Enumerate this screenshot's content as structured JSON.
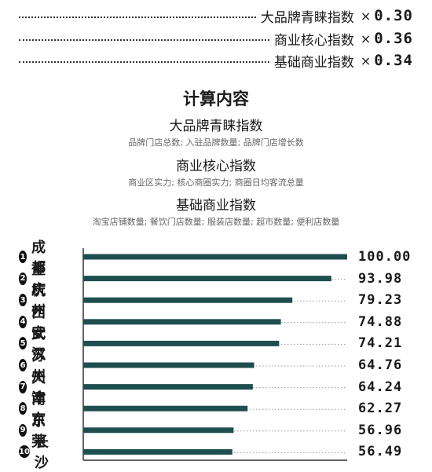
{
  "weights": [
    {
      "label": "大品牌青睐指数",
      "times": "×",
      "value": "0.30"
    },
    {
      "label": "商业核心指数",
      "times": "×",
      "value": "0.36"
    },
    {
      "label": "基础商业指数",
      "times": "×",
      "value": "0.34"
    }
  ],
  "calc": {
    "title": "计算内容",
    "items": [
      {
        "name": "大品牌青睐指数",
        "desc": "品牌门店总数; 入驻品牌数量; 品牌门店增长数"
      },
      {
        "name": "商业核心指数",
        "desc": "商业区实力; 核心商圈实力; 商圈日均客流总量"
      },
      {
        "name": "基础商业指数",
        "desc": "淘宝店铺数量; 餐饮门店数量; 服装店数量; 超市数量; 便利店数量"
      }
    ]
  },
  "chart_data": {
    "type": "bar",
    "orientation": "horizontal",
    "categories": [
      "成都",
      "重庆",
      "杭州",
      "西安",
      "武汉",
      "苏州",
      "天津",
      "南京",
      "东莞",
      "长沙"
    ],
    "ranks": [
      "1",
      "2",
      "3",
      "4",
      "5",
      "6",
      "7",
      "8",
      "9",
      "10"
    ],
    "values": [
      100.0,
      93.98,
      79.23,
      74.88,
      74.21,
      64.76,
      64.24,
      62.27,
      56.96,
      56.49
    ],
    "value_labels": [
      "100.00",
      "93.98",
      "79.23",
      "74.88",
      "74.21",
      "64.76",
      "64.24",
      "62.27",
      "56.96",
      "56.49"
    ],
    "xlim": [
      0,
      100
    ],
    "bar_color": "#1f4e4f",
    "grid": "dotted row guides"
  }
}
